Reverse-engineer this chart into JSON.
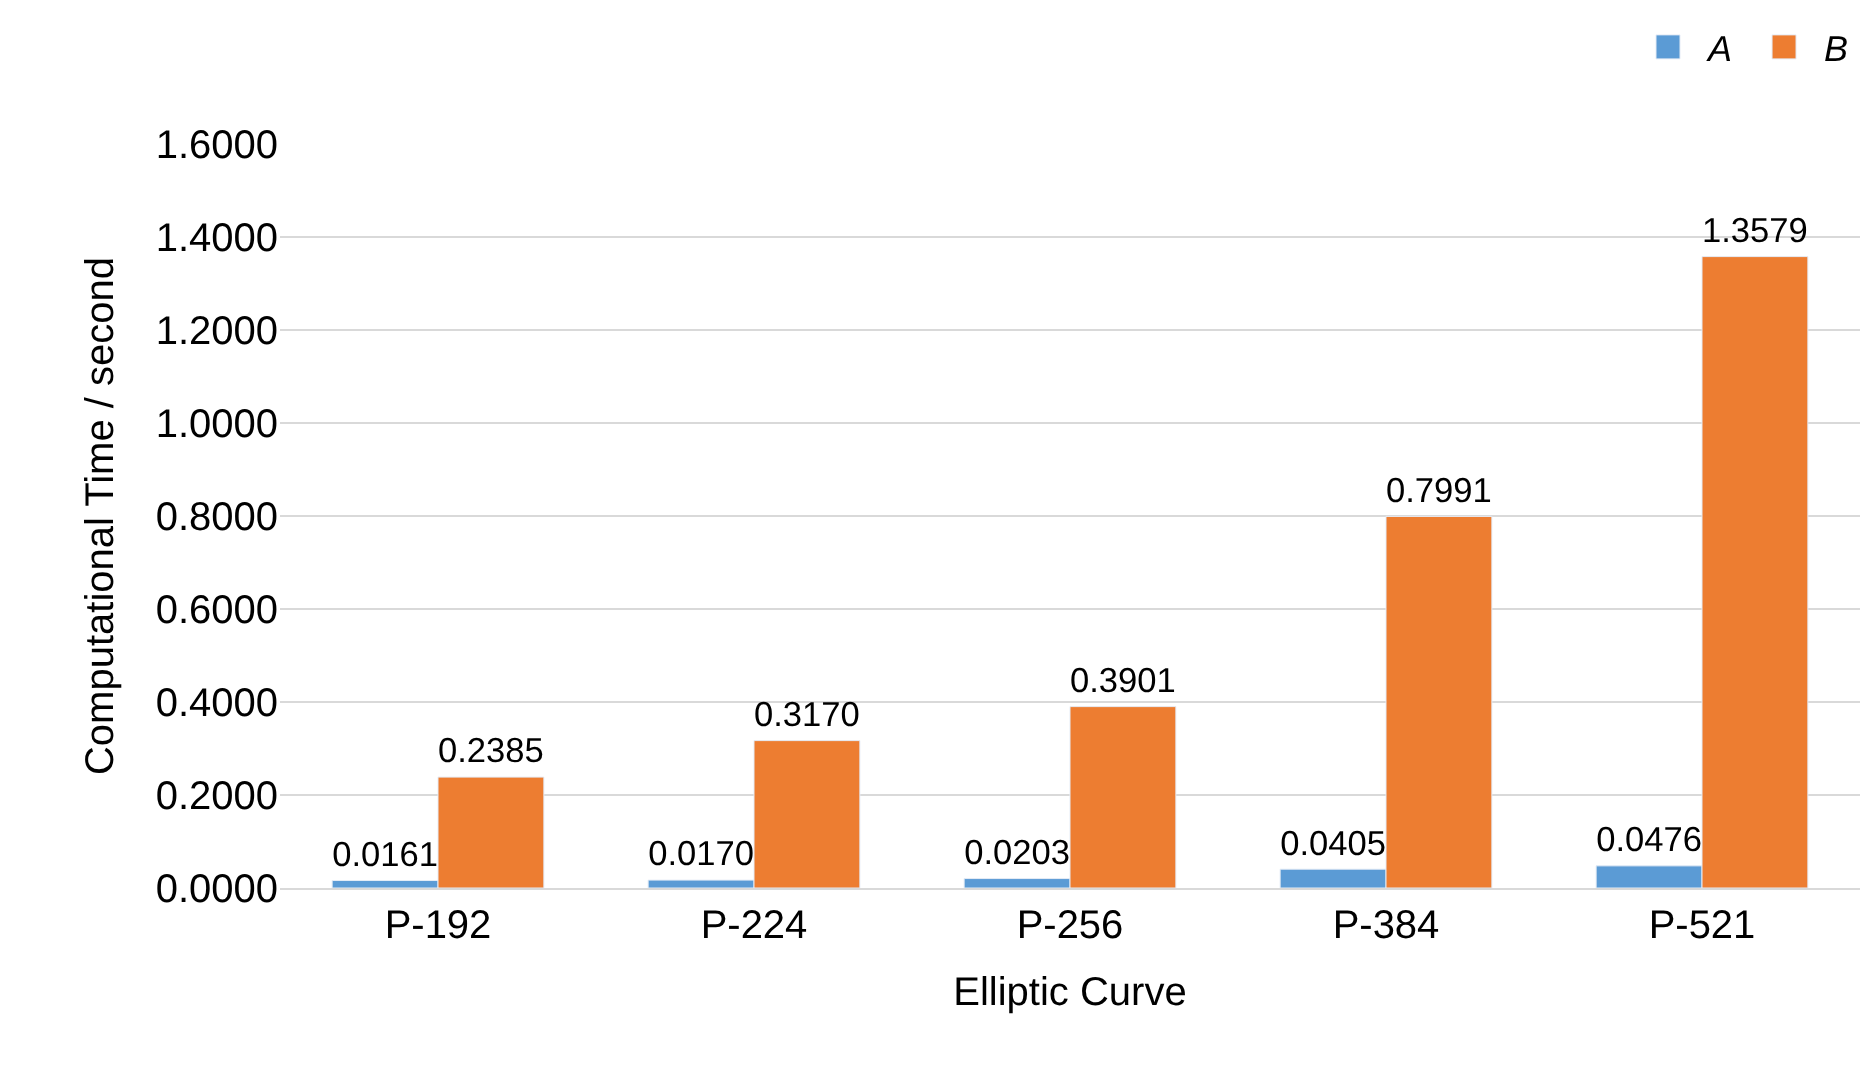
{
  "chart_data": {
    "type": "bar",
    "xlabel": "Elliptic Curve",
    "ylabel": "Computational Time / second",
    "categories": [
      "P-192",
      "P-224",
      "P-256",
      "P-384",
      "P-521"
    ],
    "series": [
      {
        "name": "A",
        "color": "#5b9bd5",
        "values": [
          0.0161,
          0.017,
          0.0203,
          0.0405,
          0.0476
        ],
        "value_labels": [
          "0.0161",
          "0.0170",
          "0.0203",
          "0.0405",
          "0.0476"
        ]
      },
      {
        "name": "B",
        "color": "#ed7d31",
        "values": [
          0.2385,
          0.317,
          0.3901,
          0.7991,
          1.3579
        ],
        "value_labels": [
          "0.2385",
          "0.3170",
          "0.3901",
          "0.7991",
          "1.3579"
        ]
      }
    ],
    "ylim": [
      0,
      1.6
    ],
    "yticks": [
      {
        "value": 0,
        "label": "0.0000"
      },
      {
        "value": 0.2,
        "label": "0.2000"
      },
      {
        "value": 0.4,
        "label": "0.4000"
      },
      {
        "value": 0.6,
        "label": "0.6000"
      },
      {
        "value": 0.8,
        "label": "0.8000"
      },
      {
        "value": 1.0,
        "label": "1.0000"
      },
      {
        "value": 1.2,
        "label": "1.2000"
      },
      {
        "value": 1.4,
        "label": "1.4000"
      },
      {
        "value": 1.6,
        "label": "1.6000"
      }
    ],
    "grid": "y",
    "legend": "top right"
  }
}
